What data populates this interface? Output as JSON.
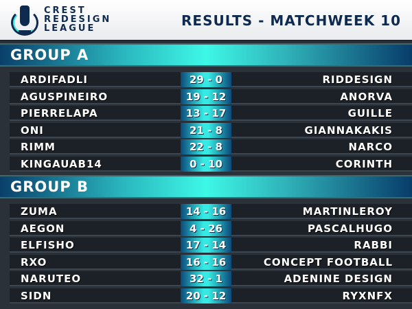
{
  "header": {
    "brand_lines": [
      "CREST",
      "REDESIGN",
      "LEAGUE"
    ],
    "title": "RESULTS - MATCHWEEK 10",
    "logo_icon": "trophy-crest-icon"
  },
  "colors": {
    "navy": "#0f2a4f",
    "cyan": "#3ef8e6",
    "row_bg": "#1c2127"
  },
  "groups": [
    {
      "name": "GROUP A",
      "matches": [
        {
          "home": "ARDIFADLI",
          "score": "29 - 0",
          "away": "RIDDESIGN"
        },
        {
          "home": "AGUSPINEIRO",
          "score": "19 - 12",
          "away": "ANORVA"
        },
        {
          "home": "PIERRELAPA",
          "score": "13 - 17",
          "away": "GUILLE"
        },
        {
          "home": "ONI",
          "score": "21 - 8",
          "away": "GIANNAKAKIS"
        },
        {
          "home": "RIMM",
          "score": "22 - 8",
          "away": "NARCO"
        },
        {
          "home": "KINGAUAB14",
          "score": "0 - 10",
          "away": "CORINTH"
        }
      ]
    },
    {
      "name": "GROUP B",
      "matches": [
        {
          "home": "ZUMA",
          "score": "14 - 16",
          "away": "MARTINLEROY"
        },
        {
          "home": "AEGON",
          "score": "4 - 26",
          "away": "PASCALHUGO"
        },
        {
          "home": "ELFISHO",
          "score": "17 - 14",
          "away": "RABBI"
        },
        {
          "home": "RXO",
          "score": "16 - 16",
          "away": "CONCEPT FOOTBALL"
        },
        {
          "home": "NARUTEO",
          "score": "32 - 1",
          "away": "ADENINE DESIGN"
        },
        {
          "home": "SIDN",
          "score": "20 - 12",
          "away": "RYXNFX"
        }
      ]
    }
  ]
}
